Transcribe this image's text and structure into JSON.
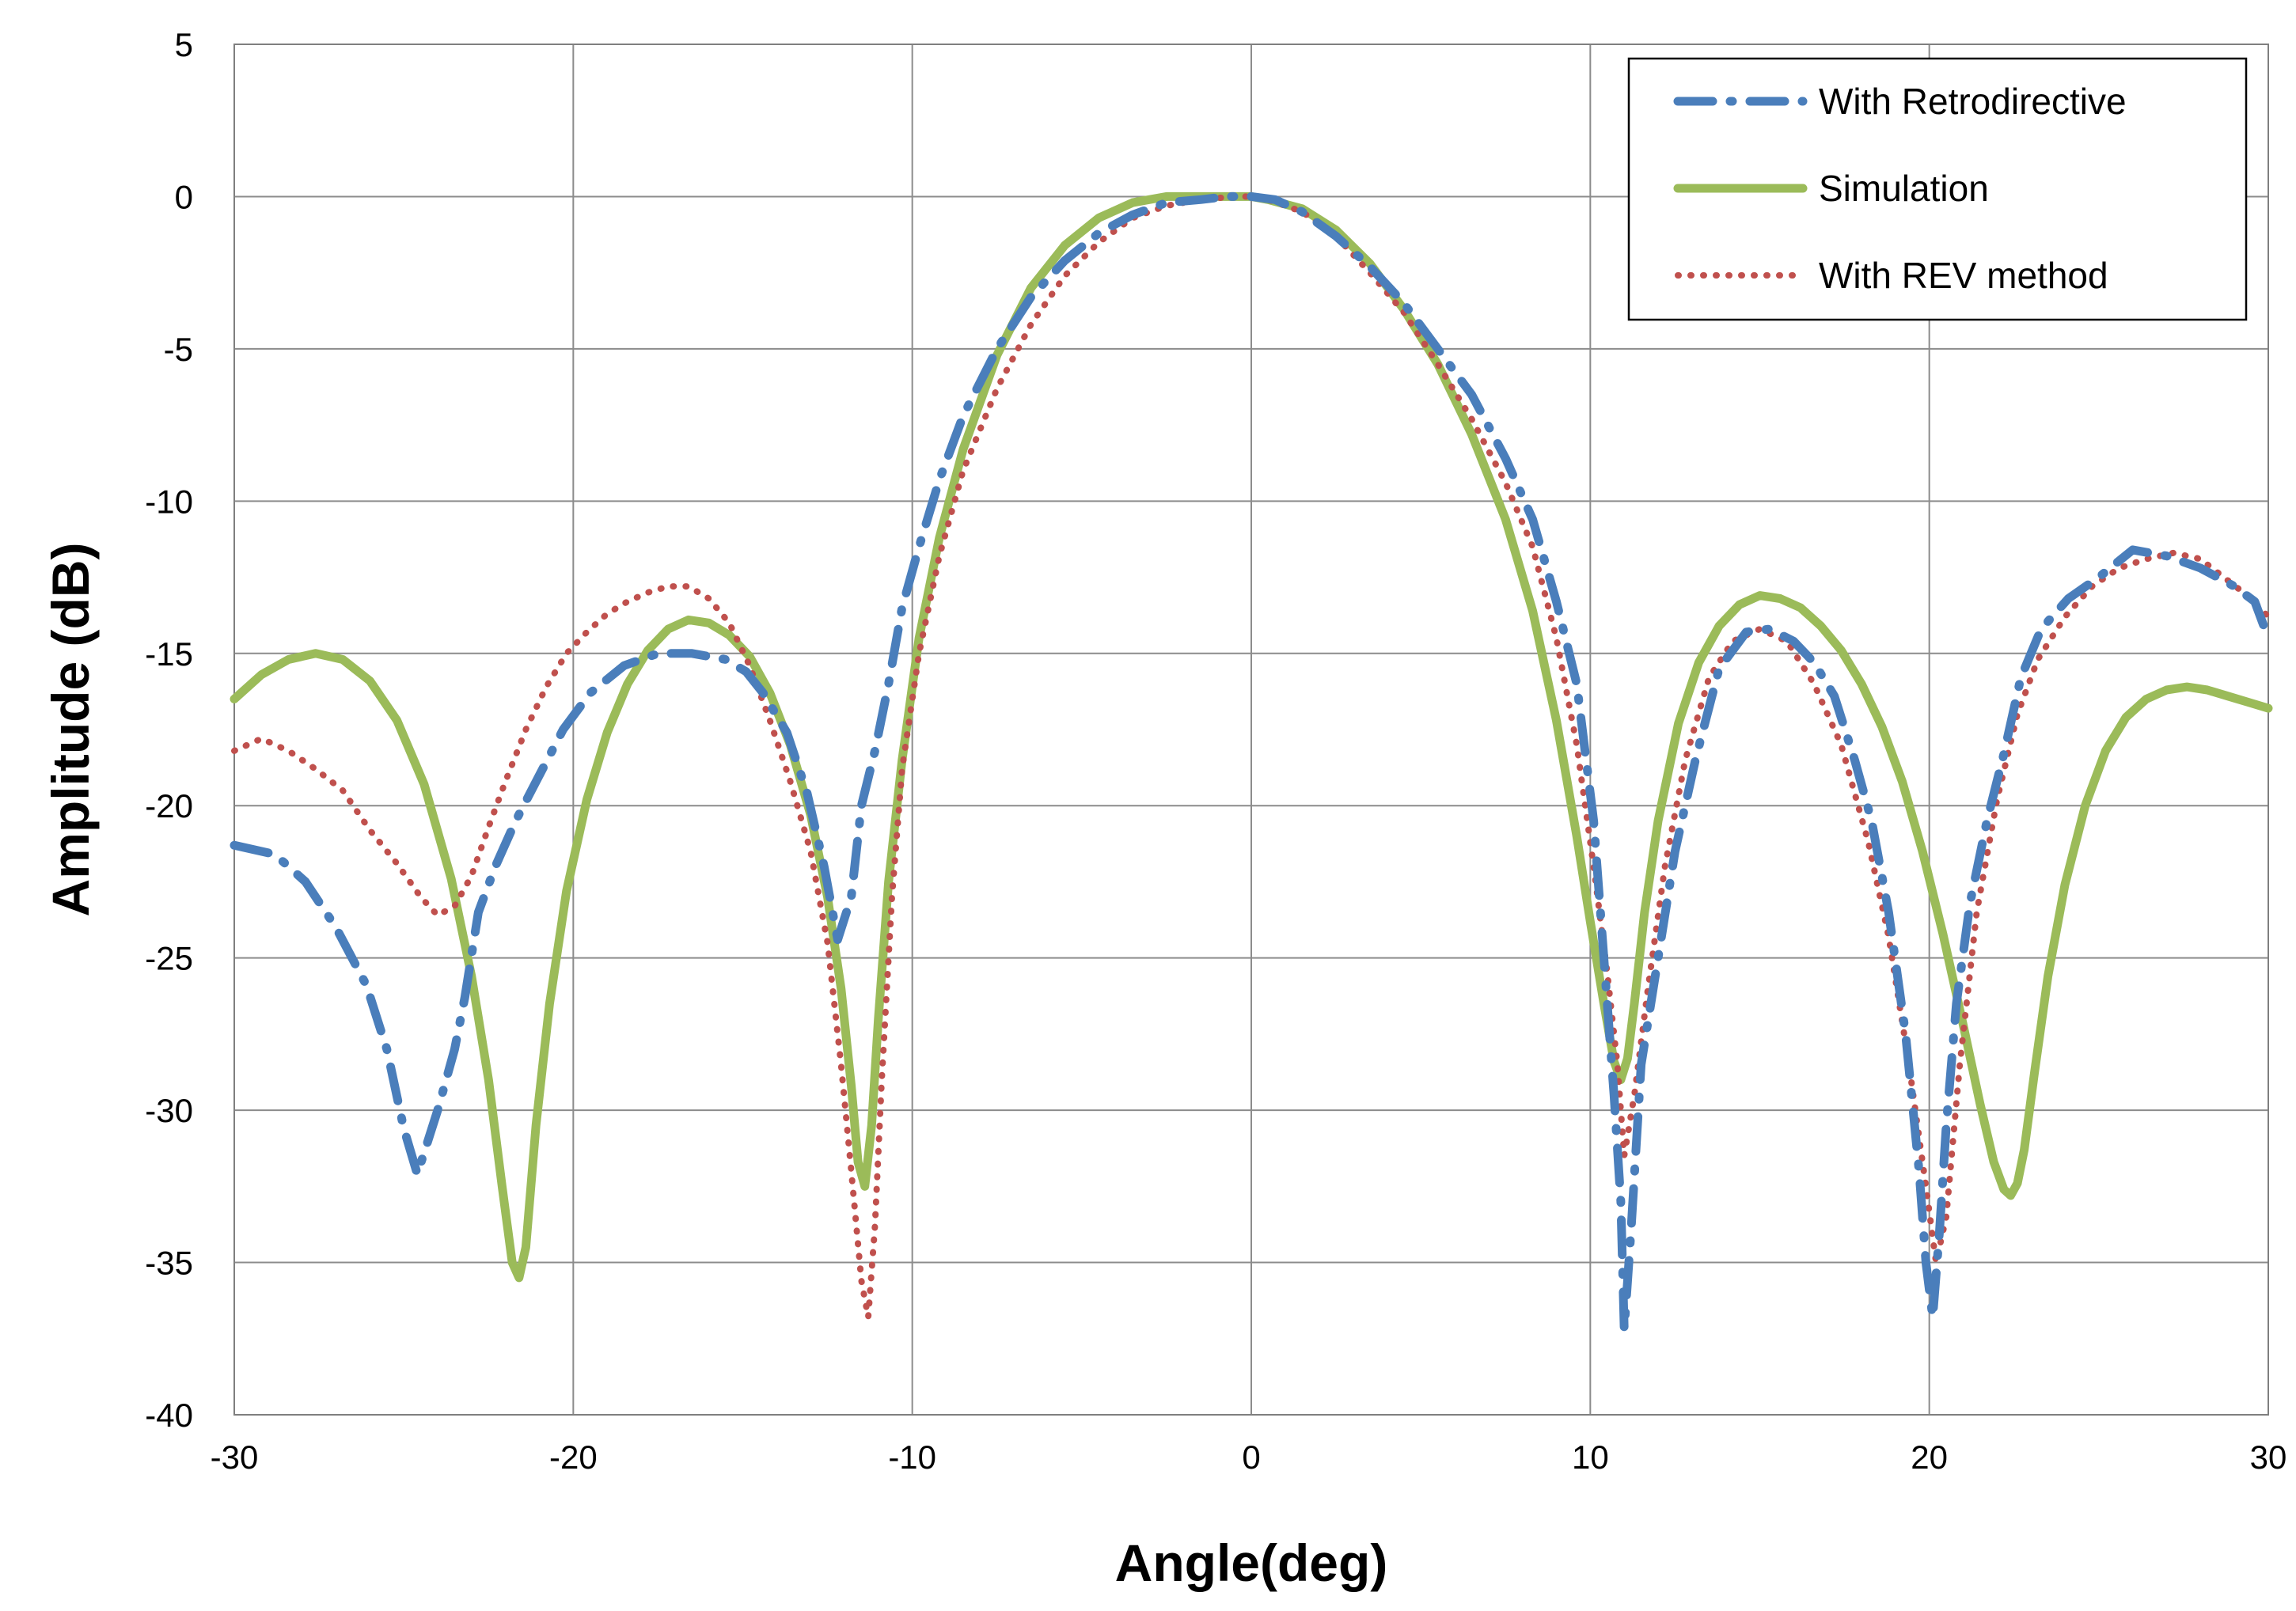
{
  "chart_data": {
    "type": "line",
    "title": "",
    "xlabel": "Angle(deg)",
    "ylabel": "Amplitude (dB)",
    "xlim": [
      -30,
      30
    ],
    "ylim": [
      -40,
      5
    ],
    "x_ticks": [
      -30,
      -20,
      -10,
      0,
      10,
      20,
      30
    ],
    "y_ticks": [
      5,
      0,
      -5,
      -10,
      -15,
      -20,
      -25,
      -30,
      -35,
      -40
    ],
    "x_tick_labels": [
      "-30",
      "-20",
      "-10",
      "0",
      "10",
      "20",
      "30"
    ],
    "y_tick_labels": [
      "5",
      "0",
      "-5",
      "-10",
      "-15",
      "-20",
      "-25",
      "-30",
      "-35",
      "-40"
    ],
    "grid": true,
    "legend_position": "top-right",
    "series": [
      {
        "name": "With Retrodirective",
        "color": "#4a7ebb",
        "style": "dash-dot",
        "x": [
          -30,
          -28.8,
          -27.9,
          -27,
          -26.1,
          -25.5,
          -25,
          -24.6,
          -24,
          -23.5,
          -23.2,
          -22.8,
          -22.3,
          -21.7,
          -21,
          -20.3,
          -19.5,
          -18.5,
          -17.5,
          -16.5,
          -15.5,
          -14.9,
          -14.4,
          -13.7,
          -13.1,
          -12.6,
          -12.2,
          -11.8,
          -11.5,
          -11.1,
          -10.7,
          -10.3,
          -9.8,
          -9.2,
          -8.5,
          -7.5,
          -6.5,
          -5.5,
          -4.5,
          -3.5,
          -2.5,
          -1.5,
          -0.7,
          0,
          0.7,
          1.5,
          2.5,
          3.5,
          4.5,
          5.5,
          6.5,
          7.5,
          8.3,
          9,
          9.6,
          10.1,
          10.4,
          10.7,
          10.9,
          11,
          11.2,
          11.5,
          12,
          12.5,
          13.1,
          13.8,
          14.6,
          15.3,
          16,
          16.6,
          17.2,
          17.8,
          18.3,
          18.8,
          19.3,
          19.7,
          19.9,
          20.1,
          20.3,
          20.5,
          20.8,
          21.2,
          21.7,
          22.2,
          22.7,
          23.3,
          24.1,
          25,
          26,
          27,
          28,
          29,
          29.6,
          30
        ],
        "y": [
          -21.3,
          -21.6,
          -22.5,
          -24,
          -25.9,
          -28,
          -30.6,
          -32.1,
          -30,
          -28,
          -26.3,
          -23.5,
          -22,
          -20.5,
          -19,
          -17.5,
          -16.3,
          -15.4,
          -15,
          -15,
          -15.2,
          -15.6,
          -16.3,
          -17.6,
          -19.6,
          -22,
          -24.4,
          -23,
          -20,
          -18.2,
          -16,
          -13.5,
          -11.5,
          -9.3,
          -7.2,
          -5,
          -3.3,
          -2.1,
          -1.2,
          -0.6,
          -0.2,
          -0.1,
          0,
          0,
          -0.1,
          -0.5,
          -1.3,
          -2.3,
          -3.5,
          -5,
          -6.5,
          -8.6,
          -10.6,
          -13.3,
          -16,
          -20.5,
          -25,
          -29.5,
          -33,
          -37.2,
          -34,
          -28.5,
          -25,
          -21.5,
          -18.5,
          -15.5,
          -14.3,
          -14.2,
          -14.6,
          -15.3,
          -16.4,
          -18.5,
          -20.5,
          -23.5,
          -27.5,
          -32,
          -35,
          -36.8,
          -34,
          -30.5,
          -26.5,
          -23.2,
          -20.5,
          -18.3,
          -15.8,
          -14.2,
          -13.2,
          -12.5,
          -11.6,
          -11.8,
          -12.2,
          -12.8,
          -13.3,
          -14.5
        ]
      },
      {
        "name": "Simulation",
        "color": "#9bbb59",
        "style": "solid",
        "x": [
          -30,
          -29.2,
          -28.4,
          -27.6,
          -26.8,
          -26,
          -25.2,
          -24.4,
          -23.6,
          -23,
          -22.5,
          -22.1,
          -21.8,
          -21.6,
          -21.4,
          -21.1,
          -20.7,
          -20.2,
          -19.6,
          -19,
          -18.4,
          -17.8,
          -17.2,
          -16.6,
          -16,
          -15.4,
          -14.8,
          -14.2,
          -13.6,
          -13,
          -12.5,
          -12.1,
          -11.8,
          -11.6,
          -11.4,
          -11.2,
          -11,
          -10.7,
          -10.3,
          -9.8,
          -9.2,
          -8.5,
          -7.5,
          -6.5,
          -5.5,
          -4.5,
          -3.5,
          -2.5,
          -1.5,
          -0.5,
          0,
          0.5,
          1.5,
          2.5,
          3.5,
          4.5,
          5.5,
          6.5,
          7.5,
          8.3,
          9,
          9.6,
          10,
          10.4,
          10.7,
          10.9,
          11.1,
          11.3,
          11.6,
          12,
          12.6,
          13.2,
          13.8,
          14.4,
          15,
          15.6,
          16.2,
          16.8,
          17.4,
          18,
          18.6,
          19.2,
          19.8,
          20.4,
          21,
          21.5,
          21.9,
          22.2,
          22.4,
          22.6,
          22.8,
          23.1,
          23.5,
          24,
          24.6,
          25.2,
          25.8,
          26.4,
          27,
          27.6,
          28.2,
          28.8,
          29.4,
          30
        ],
        "y": [
          -16.5,
          -15.7,
          -15.2,
          -15,
          -15.2,
          -15.9,
          -17.2,
          -19.3,
          -22.4,
          -25.6,
          -29,
          -32.5,
          -35,
          -35.5,
          -34.5,
          -30.5,
          -26.5,
          -22.8,
          -19.8,
          -17.6,
          -16,
          -14.9,
          -14.2,
          -13.9,
          -14,
          -14.4,
          -15.1,
          -16.3,
          -18,
          -20.3,
          -23,
          -26,
          -29.2,
          -31.7,
          -32.5,
          -30.5,
          -27,
          -22.5,
          -18.5,
          -14.5,
          -11.2,
          -8.3,
          -5.2,
          -3,
          -1.6,
          -0.7,
          -0.2,
          0,
          0,
          0,
          0,
          -0.1,
          -0.4,
          -1.1,
          -2.2,
          -3.7,
          -5.5,
          -7.8,
          -10.6,
          -13.6,
          -17.2,
          -21,
          -23.8,
          -26.5,
          -28.4,
          -29,
          -28.3,
          -26.5,
          -23.5,
          -20.5,
          -17.3,
          -15.3,
          -14.1,
          -13.4,
          -13.1,
          -13.2,
          -13.5,
          -14.1,
          -14.9,
          -16,
          -17.4,
          -19.2,
          -21.5,
          -24.2,
          -27.2,
          -29.8,
          -31.7,
          -32.6,
          -32.8,
          -32.4,
          -31.3,
          -28.8,
          -25.6,
          -22.6,
          -20,
          -18.2,
          -17.1,
          -16.5,
          -16.2,
          -16.1,
          -16.2,
          -16.4,
          -16.6,
          -16.8
        ]
      },
      {
        "name": "With REV method",
        "color": "#c0504d",
        "style": "dotted",
        "x": [
          -30,
          -29.2,
          -28.4,
          -27.6,
          -26.8,
          -26,
          -25.2,
          -24.5,
          -24,
          -23.5,
          -23,
          -22.5,
          -22,
          -21.4,
          -20.8,
          -20.2,
          -19.6,
          -19,
          -18.4,
          -17.8,
          -17.2,
          -16.6,
          -16,
          -15.4,
          -14.8,
          -14.2,
          -13.6,
          -13,
          -12.5,
          -12.1,
          -11.8,
          -11.5,
          -11.3,
          -11.1,
          -10.9,
          -10.6,
          -10.3,
          -9.8,
          -9.2,
          -8.5,
          -7.5,
          -6.5,
          -5.5,
          -4.5,
          -3.5,
          -2.5,
          -1.5,
          -0.5,
          0,
          0.5,
          1.5,
          2.5,
          3.5,
          4.5,
          5.5,
          6.5,
          7.5,
          8.3,
          9,
          9.6,
          10.1,
          10.5,
          10.8,
          11,
          11.3,
          11.7,
          12.2,
          12.8,
          13.5,
          14.2,
          15,
          15.8,
          16.6,
          17.4,
          18.2,
          18.8,
          19.4,
          19.9,
          20.2,
          20.5,
          20.9,
          21.4,
          22,
          22.6,
          23.2,
          24,
          24.8,
          25.6,
          26.4,
          27.2,
          28,
          28.8,
          29.5,
          30
        ],
        "y": [
          -18.2,
          -17.8,
          -18.2,
          -18.8,
          -19.5,
          -20.8,
          -21.9,
          -23,
          -23.6,
          -23.3,
          -22.3,
          -20.7,
          -19.2,
          -17.5,
          -16.1,
          -15,
          -14.3,
          -13.7,
          -13.3,
          -13,
          -12.8,
          -12.8,
          -13.2,
          -14,
          -15.4,
          -17.2,
          -19.2,
          -21.5,
          -24.5,
          -28.5,
          -32,
          -35.6,
          -36.8,
          -33.8,
          -29,
          -23,
          -18.8,
          -15,
          -11.8,
          -9,
          -6.3,
          -4.2,
          -2.6,
          -1.5,
          -0.7,
          -0.3,
          -0.1,
          0,
          0,
          -0.1,
          -0.5,
          -1.3,
          -2.5,
          -3.8,
          -5.5,
          -7.3,
          -9.4,
          -11.5,
          -14.5,
          -18,
          -22,
          -25.5,
          -28.5,
          -31.5,
          -29.5,
          -26,
          -22,
          -18.5,
          -15.8,
          -14.6,
          -14.2,
          -14.6,
          -16,
          -18,
          -21.2,
          -24.3,
          -28.5,
          -32.5,
          -35,
          -33.5,
          -28.5,
          -23.5,
          -19.8,
          -17,
          -15.2,
          -13.8,
          -12.8,
          -12.2,
          -11.9,
          -11.7,
          -11.9,
          -12.6,
          -13.2,
          -13.8
        ]
      }
    ]
  }
}
